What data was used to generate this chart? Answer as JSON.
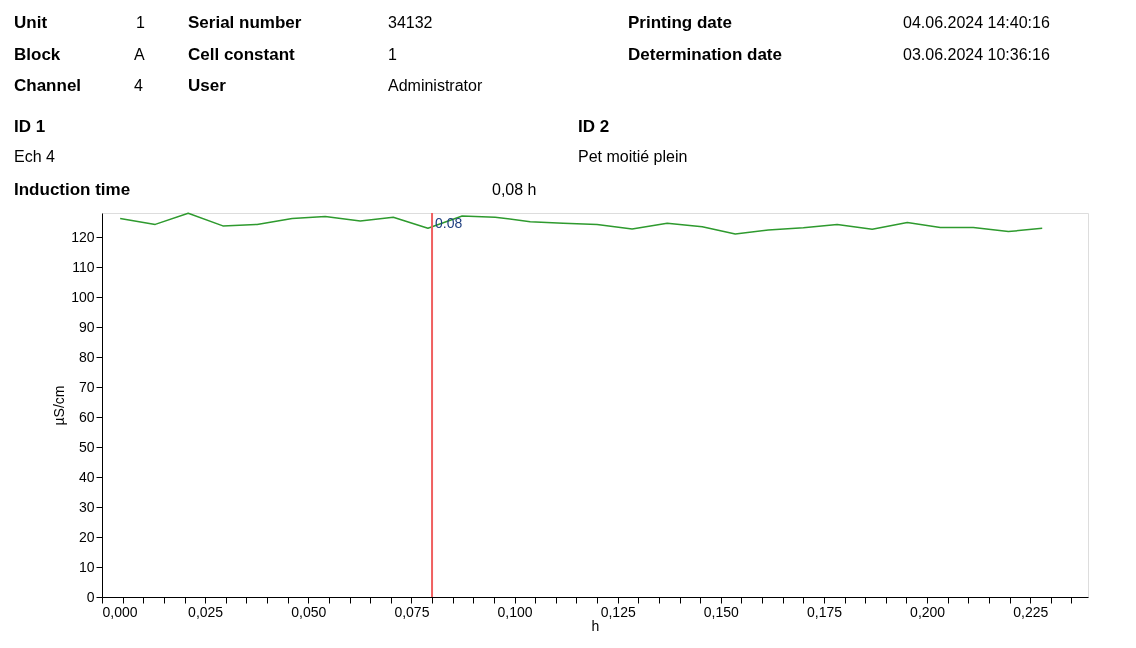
{
  "chart_data": {
    "type": "line",
    "annotations": [
      "Unit",
      "1",
      "Serial number",
      "34132",
      "Printing date",
      "04.06.2024 14:40:16",
      "Block",
      "A",
      "Cell constant",
      "1",
      "Determination date",
      "03.06.2024 10:36:16",
      "Channel",
      "4",
      "User",
      "Administrator",
      "ID 1",
      "ID 2",
      "Ech 4",
      "Pet moitié plein",
      "Induction time",
      "0,08 h"
    ],
    "xlabel": "h",
    "ylabel": "µS/cm",
    "x": [
      0.0044,
      0.0129,
      0.0209,
      0.0293,
      0.0376,
      0.0461,
      0.0541,
      0.0626,
      0.0706,
      0.079,
      0.0873,
      0.0953,
      0.1038,
      0.1118,
      0.12,
      0.1285,
      0.137,
      0.1455,
      0.1535,
      0.1615,
      0.17,
      0.1782,
      0.1867,
      0.1952,
      0.2032,
      0.2112,
      0.2197,
      0.2279
    ],
    "series": [
      {
        "color": "#2e9a2e",
        "values": [
          126.2,
          124.2,
          127.9,
          123.7,
          124.2,
          126.2,
          126.8,
          125.3,
          126.6,
          122.9,
          127,
          126.6,
          125.1,
          124.6,
          124.2,
          122.7,
          124.6,
          123.4,
          121,
          122.3,
          123.1,
          124.2,
          122.6,
          124.8,
          123.2,
          123.2,
          121.8,
          122.9
        ]
      }
    ],
    "xlim": [
      0,
      0.239
    ],
    "ylim": [
      0,
      128
    ],
    "xticks": [
      {
        "value": 0,
        "label": "0,000"
      },
      {
        "value": 0.005,
        "label": null
      },
      {
        "value": 0.01,
        "label": null
      },
      {
        "value": 0.015,
        "label": null
      },
      {
        "value": 0.02,
        "label": null
      },
      {
        "value": 0.025,
        "label": "0,025"
      },
      {
        "value": 0.03,
        "label": null
      },
      {
        "value": 0.035,
        "label": null
      },
      {
        "value": 0.04,
        "label": null
      },
      {
        "value": 0.045,
        "label": null
      },
      {
        "value": 0.05,
        "label": "0,050"
      },
      {
        "value": 0.055,
        "label": null
      },
      {
        "value": 0.06,
        "label": null
      },
      {
        "value": 0.065,
        "label": null
      },
      {
        "value": 0.07,
        "label": null
      },
      {
        "value": 0.075,
        "label": "0,075"
      },
      {
        "value": 0.08,
        "label": null
      },
      {
        "value": 0.085,
        "label": null
      },
      {
        "value": 0.09,
        "label": null
      },
      {
        "value": 0.095,
        "label": null
      },
      {
        "value": 0.1,
        "label": "0,100"
      },
      {
        "value": 0.105,
        "label": null
      },
      {
        "value": 0.11,
        "label": null
      },
      {
        "value": 0.115,
        "label": null
      },
      {
        "value": 0.12,
        "label": null
      },
      {
        "value": 0.125,
        "label": "0,125"
      },
      {
        "value": 0.13,
        "label": null
      },
      {
        "value": 0.135,
        "label": null
      },
      {
        "value": 0.14,
        "label": null
      },
      {
        "value": 0.145,
        "label": null
      },
      {
        "value": 0.15,
        "label": "0,150"
      },
      {
        "value": 0.155,
        "label": null
      },
      {
        "value": 0.16,
        "label": null
      },
      {
        "value": 0.165,
        "label": null
      },
      {
        "value": 0.17,
        "label": null
      },
      {
        "value": 0.175,
        "label": "0,175"
      },
      {
        "value": 0.18,
        "label": null
      },
      {
        "value": 0.185,
        "label": null
      },
      {
        "value": 0.19,
        "label": null
      },
      {
        "value": 0.195,
        "label": null
      },
      {
        "value": 0.2,
        "label": "0,200"
      },
      {
        "value": 0.205,
        "label": null
      },
      {
        "value": 0.21,
        "label": null
      },
      {
        "value": 0.215,
        "label": null
      },
      {
        "value": 0.22,
        "label": null
      },
      {
        "value": 0.225,
        "label": "0,225"
      },
      {
        "value": 0.23,
        "label": null
      },
      {
        "value": 0.235,
        "label": null
      }
    ],
    "yticks": [
      0,
      10,
      20,
      30,
      40,
      50,
      60,
      70,
      80,
      90,
      100,
      110,
      120
    ],
    "ref_lines": [
      {
        "axis": "x",
        "value": 0.08,
        "label": "0.08",
        "color": "#f06060"
      }
    ],
    "grid": false,
    "marker": "none",
    "line_style": "solid"
  }
}
